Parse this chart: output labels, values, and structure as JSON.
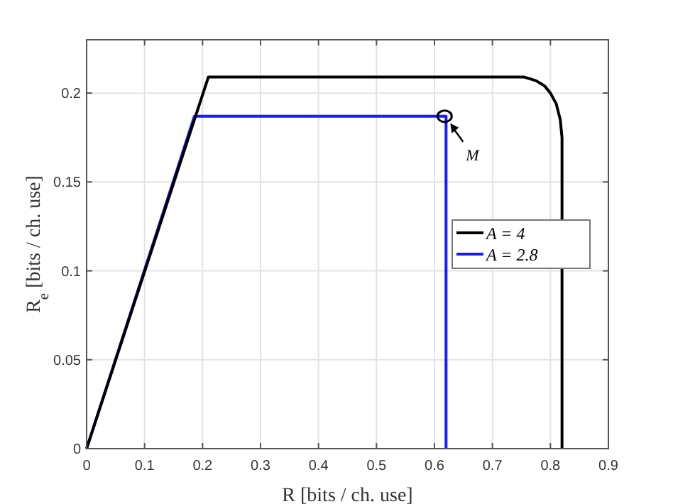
{
  "chart_data": {
    "type": "line",
    "xlabel": "R [bits / ch. use]",
    "ylabel": "R$_{e}$ [bits / ch. use]",
    "xlim": [
      0,
      0.9
    ],
    "ylim": [
      0,
      0.23
    ],
    "xticks": [
      0,
      0.1,
      0.2,
      0.3,
      0.4,
      0.5,
      0.6,
      0.7,
      0.8,
      0.9
    ],
    "yticks": [
      0,
      0.05,
      0.1,
      0.15,
      0.2
    ],
    "grid": true,
    "legend": "right",
    "line_style": "solid",
    "marker": "none",
    "series": [
      {
        "name": "A = 4",
        "color": "#000000",
        "x": [
          0,
          0.21,
          0.755,
          0.775,
          0.79,
          0.8,
          0.81,
          0.817,
          0.82,
          0.82
        ],
        "values": [
          0,
          0.209,
          0.209,
          0.207,
          0.204,
          0.2,
          0.194,
          0.185,
          0.175,
          0
        ]
      },
      {
        "name": "A = 2.8",
        "color": "#1a1aff",
        "x": [
          0,
          0.186,
          0.62,
          0.62
        ],
        "values": [
          0,
          0.187,
          0.187,
          0
        ]
      }
    ],
    "annotations": [
      {
        "text": "M",
        "x": 0.62,
        "y": 0.187
      }
    ]
  }
}
